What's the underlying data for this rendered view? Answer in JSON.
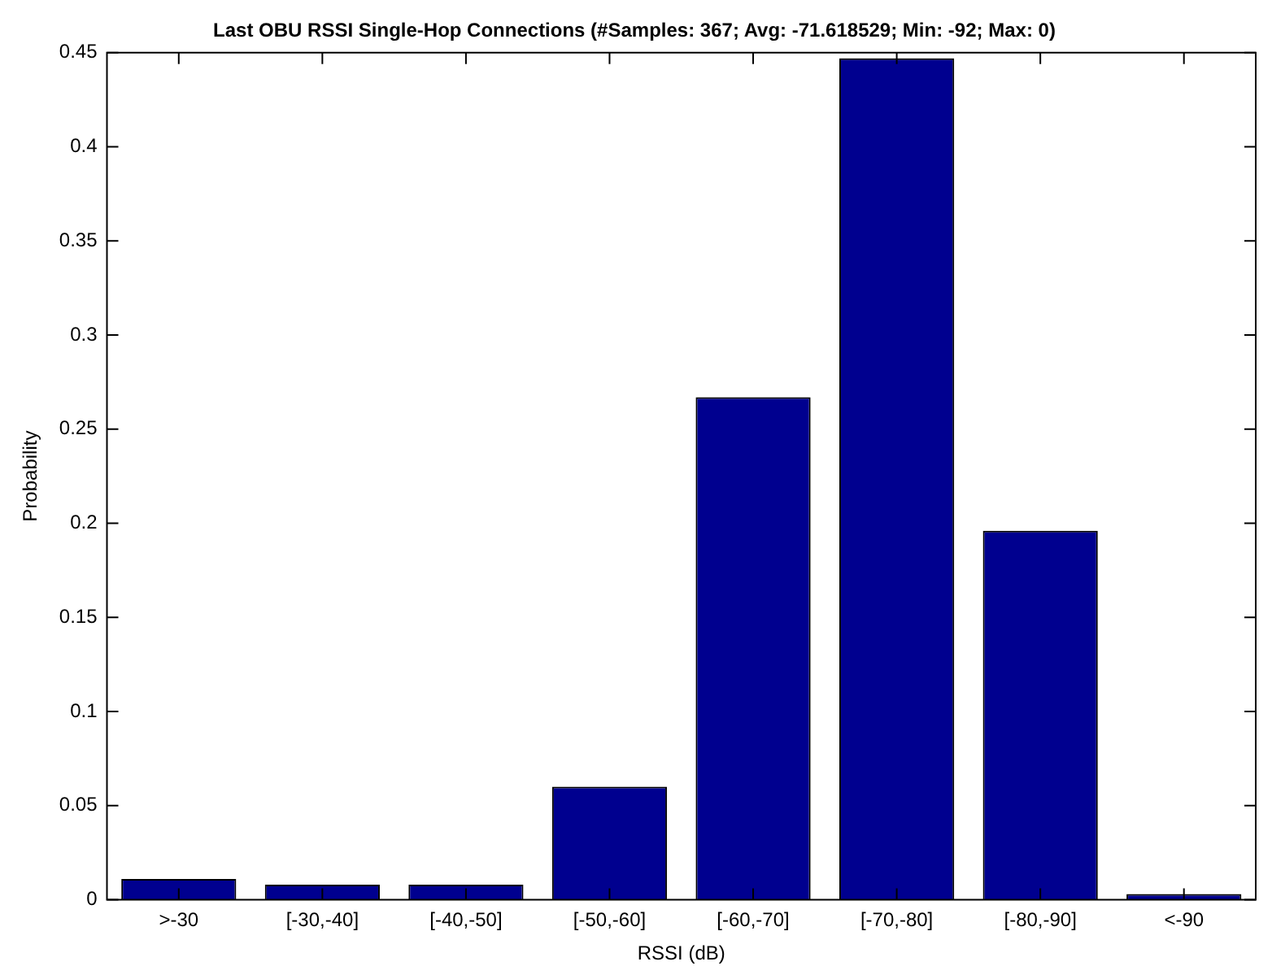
{
  "chart_data": {
    "type": "bar",
    "title": "Last OBU RSSI Single-Hop Connections (#Samples: 367; Avg: -71.618529; Min: -92; Max: 0)",
    "xlabel": "RSSI (dB)",
    "ylabel": "Probability",
    "categories": [
      ">-30",
      "[-30,-40]",
      "[-40,-50]",
      "[-50,-60]",
      "[-60,-70]",
      "[-70,-80]",
      "[-80,-90]",
      "<-90"
    ],
    "values": [
      0.011,
      0.008,
      0.008,
      0.06,
      0.267,
      0.447,
      0.196,
      0.003
    ],
    "color": "#00008f",
    "ylim": [
      0,
      0.45
    ],
    "yticks": [
      0,
      0.05,
      0.1,
      0.15,
      0.2,
      0.25,
      0.3,
      0.35,
      0.4,
      0.45
    ],
    "grid": false,
    "legend": false
  }
}
